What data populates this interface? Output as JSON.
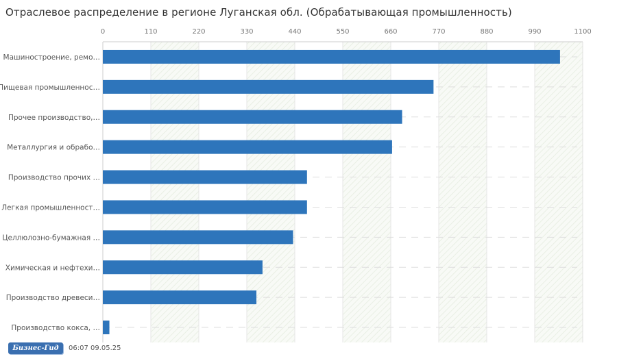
{
  "title": "Отраслевое распределение в регионе Луганская обл. (Обрабатывающая промышленность)",
  "chart_data": {
    "type": "bar",
    "orientation": "horizontal",
    "categories": [
      "Машиностроение, ремо…",
      "Пищевая промышленнос…",
      "Прочее производство,…",
      "Металлургия и обрабо…",
      "Производство прочих …",
      "Легкая промышленност…",
      "Целлюлозно-бумажная …",
      "Химическая и нефтехи…",
      "Производство древеси…",
      "Производство кокса, …"
    ],
    "values": [
      1048,
      758,
      686,
      663,
      468,
      468,
      436,
      366,
      352,
      15
    ],
    "xlim": [
      0,
      1100
    ],
    "xticks": [
      "0",
      "110",
      "220",
      "330",
      "440",
      "550",
      "660",
      "770",
      "880",
      "990",
      "1100"
    ],
    "axis_position": "top",
    "bar_color": "#2e75bb",
    "grid": true
  },
  "footer": {
    "logo_text": "Бизнес-Гид",
    "timestamp": "06:07 09.05.25"
  }
}
